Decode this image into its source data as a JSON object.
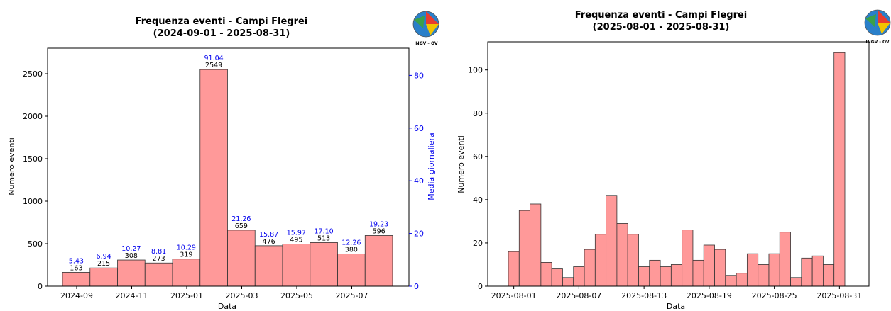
{
  "colors": {
    "bar_fill": "#ff9999",
    "bar_stroke": "#333333",
    "secondary_axis": "#0000ee"
  },
  "logo": {
    "text": "INGV - OV",
    "icon": "ingv-globe-logo-icon"
  },
  "chart_data": [
    {
      "type": "bar",
      "title_line1": "Frequenza eventi - Campi Flegrei",
      "title_line2": "(2024-09-01 - 2025-08-31)",
      "xlabel": "Data",
      "ylabel": "Numero eventi",
      "y2label": "Media giornaliera",
      "categories": [
        "2024-09",
        "2024-10",
        "2024-11",
        "2024-12",
        "2025-01",
        "2025-02",
        "2025-03",
        "2025-04",
        "2025-05",
        "2025-06",
        "2025-07",
        "2025-08"
      ],
      "values": [
        163,
        215,
        308,
        273,
        319,
        2549,
        659,
        476,
        495,
        513,
        380,
        596
      ],
      "daily_mean_labels": [
        "5.43",
        "6.94",
        "10.27",
        "8.81",
        "10.29",
        "91.04",
        "21.26",
        "15.87",
        "15.97",
        "17.10",
        "12.26",
        "19.23"
      ],
      "ylim": [
        0,
        2800
      ],
      "y2lim": [
        0,
        90.32
      ],
      "yticks": [
        0,
        500,
        1000,
        1500,
        2000,
        2500
      ],
      "y2ticks": [
        0,
        20,
        40,
        60,
        80
      ],
      "xtick_labels": [
        "2024-09",
        "2024-11",
        "2025-01",
        "2025-03",
        "2025-05",
        "2025-07"
      ],
      "xtick_index": [
        0,
        2,
        4,
        6,
        8,
        10
      ],
      "grid": false
    },
    {
      "type": "bar",
      "title_line1": "Frequenza eventi - Campi Flegrei",
      "title_line2": "(2025-08-01 - 2025-08-31)",
      "xlabel": "Data",
      "ylabel": "Numero eventi",
      "values": [
        16,
        35,
        38,
        11,
        8,
        4,
        9,
        17,
        24,
        42,
        29,
        24,
        9,
        12,
        9,
        10,
        26,
        12,
        19,
        17,
        5,
        6,
        15,
        10,
        15,
        25,
        4,
        13,
        14,
        10,
        108
      ],
      "ylim": [
        0,
        113
      ],
      "yticks": [
        0,
        20,
        40,
        60,
        80,
        100
      ],
      "xtick_labels": [
        "2025-08-01",
        "2025-08-07",
        "2025-08-13",
        "2025-08-19",
        "2025-08-25",
        "2025-08-31"
      ],
      "xtick_index": [
        0,
        6,
        12,
        18,
        24,
        30
      ],
      "grid": false
    }
  ]
}
